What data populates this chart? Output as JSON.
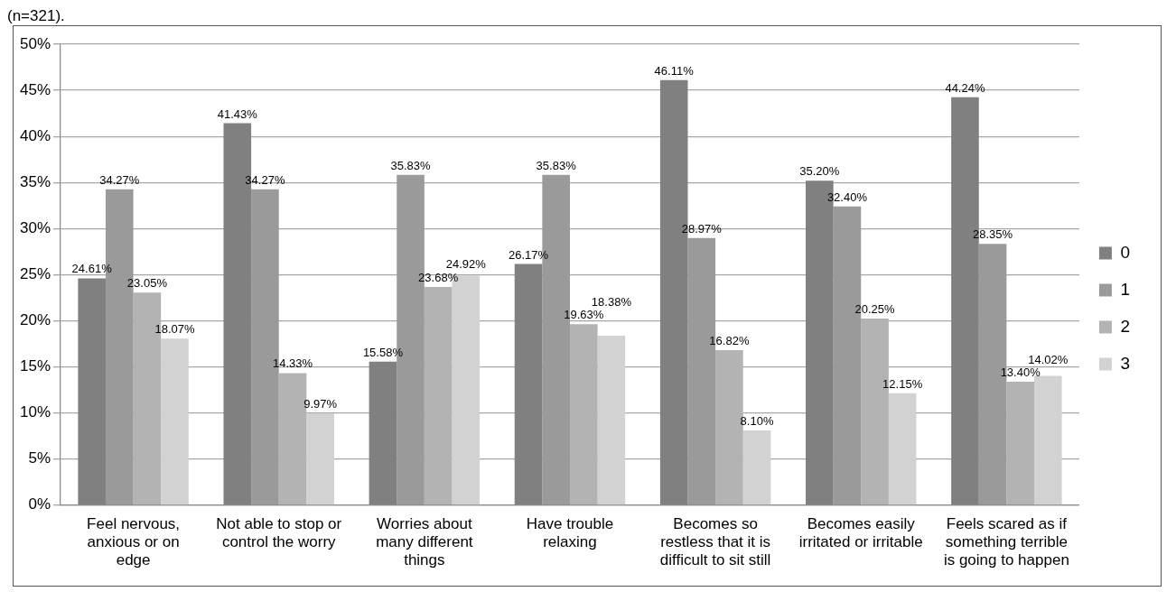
{
  "chart_data": {
    "type": "bar",
    "annotations": [
      "(n=321)."
    ],
    "categories": [
      "Feel nervous, anxious or on edge",
      "Not able to stop or control the worry",
      "Worries about many different things",
      "Have trouble relaxing",
      "Becomes so restless that it is difficult to sit still",
      "Becomes easily irritated or irritable",
      "Feels scared as if something terrible is going to happen"
    ],
    "series": [
      {
        "name": "0",
        "color": "#808080",
        "values": [
          24.61,
          41.43,
          15.58,
          26.17,
          46.11,
          35.2,
          44.24
        ],
        "value_labels": [
          "24.61%",
          "41.43%",
          "15.58%",
          "26.17%",
          "46.11%",
          "35.20%",
          "44.24%"
        ]
      },
      {
        "name": "1",
        "color": "#9a9a9a",
        "values": [
          34.27,
          34.27,
          35.83,
          35.83,
          28.97,
          32.4,
          28.35
        ],
        "value_labels": [
          "34.27%",
          "34.27%",
          "35.83%",
          "35.83%",
          "28.97%",
          "32.40%",
          "28.35%"
        ]
      },
      {
        "name": "2",
        "color": "#b3b3b3",
        "values": [
          23.05,
          14.33,
          23.68,
          19.63,
          16.82,
          20.25,
          13.4
        ],
        "value_labels": [
          "23.05%",
          "14.33%",
          "23.68%",
          "19.63%",
          "16.82%",
          "20.25%",
          "13.40%"
        ]
      },
      {
        "name": "3",
        "color": "#d2d2d2",
        "values": [
          18.07,
          9.97,
          24.92,
          18.38,
          8.1,
          12.15,
          14.02
        ],
        "value_labels": [
          "18.07%",
          "9.97%",
          "24.92%",
          "18.38%",
          "8.10%",
          "12.15%",
          "14.02%"
        ]
      }
    ],
    "ylim": [
      0,
      50
    ],
    "yticks": [
      {
        "value": 0,
        "label": "0%"
      },
      {
        "value": 5,
        "label": "5%"
      },
      {
        "value": 10,
        "label": "10%"
      },
      {
        "value": 15,
        "label": "15%"
      },
      {
        "value": 20,
        "label": "20%"
      },
      {
        "value": 25,
        "label": "25%"
      },
      {
        "value": 30,
        "label": "30%"
      },
      {
        "value": 35,
        "label": "35%"
      },
      {
        "value": 40,
        "label": "40%"
      },
      {
        "value": 45,
        "label": "45%"
      },
      {
        "value": 50,
        "label": "50%"
      }
    ],
    "grid": "y",
    "legend": "right"
  }
}
